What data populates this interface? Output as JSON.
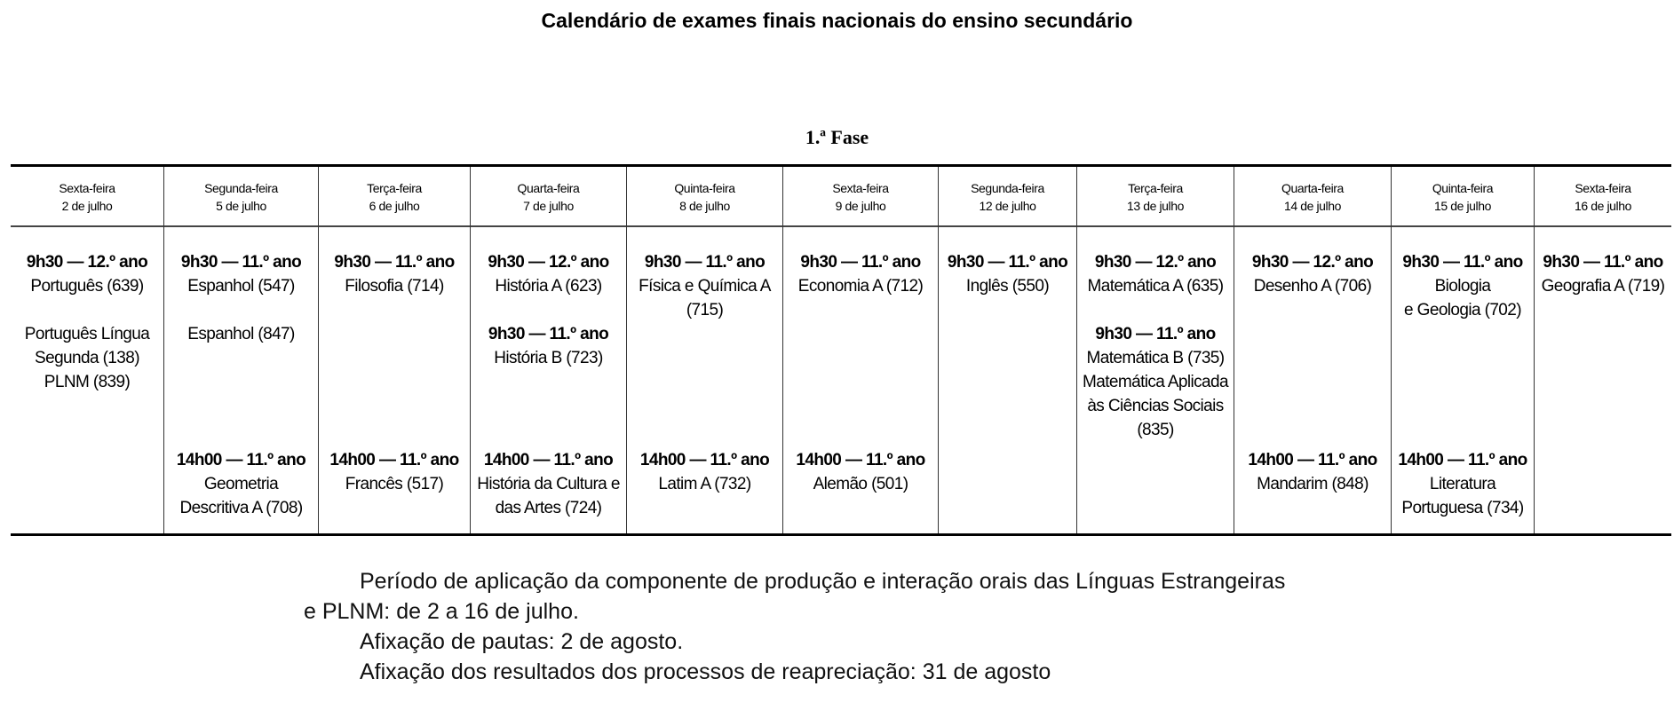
{
  "title": "Calendário de exames finais nacionais do ensino secundário",
  "phase": "1.ª Fase",
  "columns": [
    {
      "weekday": "Sexta-feira",
      "date": "2 de julho",
      "morning": [
        {
          "time": "9h30 — 12.º ano",
          "lines": [
            "Português (639)"
          ]
        },
        {
          "time": "",
          "lines": [
            "Português Língua",
            "Segunda (138)",
            "PLNM (839)"
          ]
        }
      ],
      "afternoon": []
    },
    {
      "weekday": "Segunda-feira",
      "date": "5 de julho",
      "morning": [
        {
          "time": "9h30 — 11.º ano",
          "lines": [
            "Espanhol (547)"
          ]
        },
        {
          "time": "",
          "lines": [
            "Espanhol (847)"
          ]
        }
      ],
      "afternoon": [
        {
          "time": "14h00 — 11.º ano",
          "lines": [
            "Geometria",
            "Descritiva A (708)"
          ]
        }
      ]
    },
    {
      "weekday": "Terça-feira",
      "date": "6 de julho",
      "morning": [
        {
          "time": "9h30 — 11.º ano",
          "lines": [
            "Filosofia (714)"
          ]
        }
      ],
      "afternoon": [
        {
          "time": "14h00 — 11.º ano",
          "lines": [
            "Francês (517)"
          ]
        }
      ]
    },
    {
      "weekday": "Quarta-feira",
      "date": "7 de julho",
      "morning": [
        {
          "time": "9h30 — 12.º ano",
          "lines": [
            "História A (623)"
          ]
        },
        {
          "time": "9h30 — 11.º ano",
          "lines": [
            "História B (723)"
          ]
        }
      ],
      "afternoon": [
        {
          "time": "14h00 — 11.º ano",
          "lines": [
            "História da Cultura e",
            "das Artes (724)"
          ]
        }
      ]
    },
    {
      "weekday": "Quinta-feira",
      "date": "8 de julho",
      "morning": [
        {
          "time": "9h30 — 11.º ano",
          "lines": [
            "Física e Química A",
            "(715)"
          ]
        }
      ],
      "afternoon": [
        {
          "time": "14h00 — 11.º ano",
          "lines": [
            "Latim A (732)"
          ]
        }
      ]
    },
    {
      "weekday": "Sexta-feira",
      "date": "9 de julho",
      "morning": [
        {
          "time": "9h30 — 11.º ano",
          "lines": [
            "Economia A (712)"
          ]
        }
      ],
      "afternoon": [
        {
          "time": "14h00 — 11.º ano",
          "lines": [
            "Alemão (501)"
          ]
        }
      ]
    },
    {
      "weekday": "Segunda-feira",
      "date": "12 de julho",
      "morning": [
        {
          "time": "9h30 — 11.º ano",
          "lines": [
            "Inglês (550)"
          ]
        }
      ],
      "afternoon": []
    },
    {
      "weekday": "Terça-feira",
      "date": "13 de julho",
      "morning": [
        {
          "time": "9h30 — 12.º ano",
          "lines": [
            "Matemática A (635)"
          ]
        },
        {
          "time": "9h30 — 11.º ano",
          "lines": [
            "Matemática B (735)",
            "Matemática Aplicada",
            "às Ciências Sociais",
            "(835)"
          ]
        }
      ],
      "afternoon": []
    },
    {
      "weekday": "Quarta-feira",
      "date": "14 de julho",
      "morning": [
        {
          "time": "9h30 — 12.º ano",
          "lines": [
            "Desenho A (706)"
          ]
        }
      ],
      "afternoon": [
        {
          "time": "14h00 — 11.º ano",
          "lines": [
            "Mandarim (848)"
          ]
        }
      ]
    },
    {
      "weekday": "Quinta-feira",
      "date": "15 de julho",
      "morning": [
        {
          "time": "9h30 — 11.º ano",
          "lines": [
            "Biologia",
            "e Geologia (702)"
          ]
        }
      ],
      "afternoon": [
        {
          "time": "14h00 — 11.º ano",
          "lines": [
            "Literatura",
            "Portuguesa (734)"
          ]
        }
      ]
    },
    {
      "weekday": "Sexta-feira",
      "date": "16 de julho",
      "morning": [
        {
          "time": "9h30 — 11.º ano",
          "lines": [
            "Geografia A (719)"
          ]
        }
      ],
      "afternoon": []
    }
  ],
  "footer": {
    "line1": "Período de aplicação da componente de produção e interação orais das Línguas Estrangeiras",
    "line2": "e PLNM: de 2 a 16 de julho.",
    "line3": "Afixação de pautas: 2 de agosto.",
    "line4": "Afixação dos resultados dos processos de reapreciação: 31 de agosto"
  }
}
